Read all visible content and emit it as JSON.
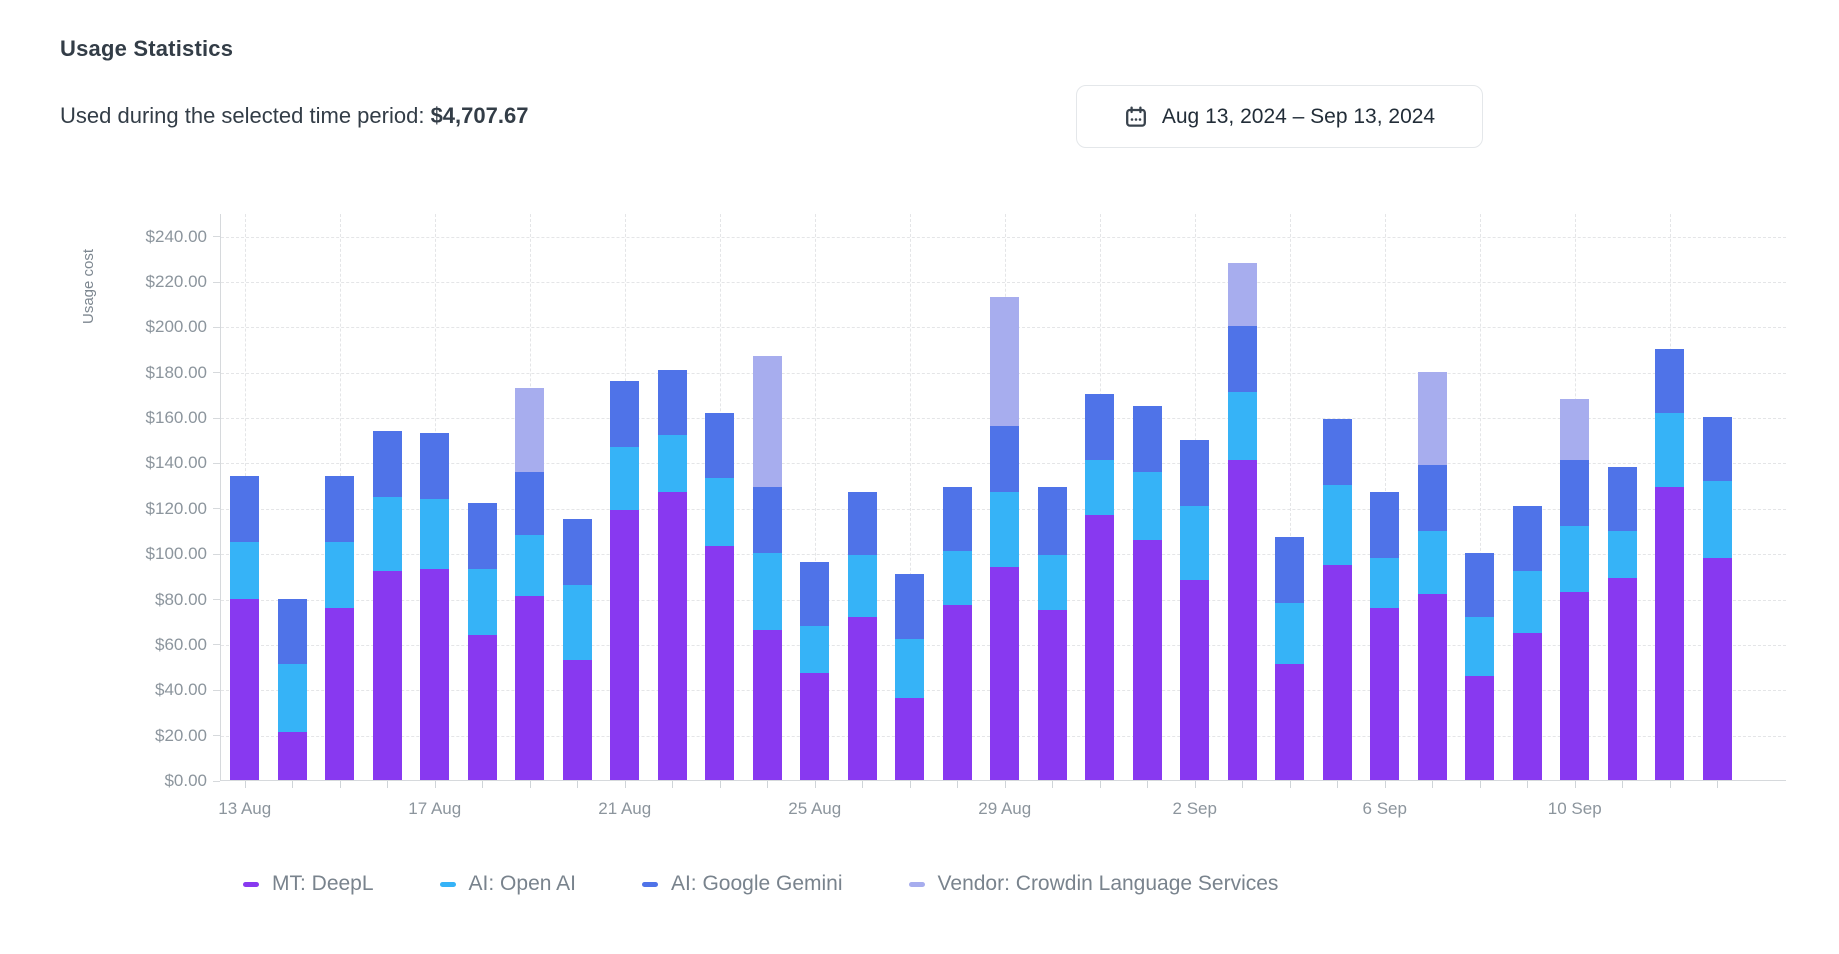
{
  "page": {
    "title": "Usage Statistics"
  },
  "summary": {
    "label": "Used during the selected time period:",
    "value": "$4,707.67"
  },
  "date_picker": {
    "range": "Aug 13, 2024 – Sep 13, 2024",
    "icon": "calendar-icon"
  },
  "colors": {
    "deepl": "#8839f0",
    "openai": "#36b3f7",
    "gemini": "#4f73e8",
    "crowdin": "#a7adee",
    "grid": "#e4e5e7",
    "axis": "#d6d9dc",
    "tick_text": "#8c959d",
    "legend_text": "#79838d"
  },
  "chart_data": {
    "type": "bar",
    "stacked": true,
    "title": "Usage Statistics",
    "xlabel": "",
    "ylabel": "Usage cost",
    "ylim": [
      0,
      250
    ],
    "grid": true,
    "legend_position": "bottom",
    "y_ticks": [
      0,
      20,
      40,
      60,
      80,
      100,
      120,
      140,
      160,
      180,
      200,
      220,
      240
    ],
    "y_tick_labels": [
      "$0.00",
      "$20.00",
      "$40.00",
      "$60.00",
      "$80.00",
      "$100.00",
      "$120.00",
      "$140.00",
      "$160.00",
      "$180.00",
      "$200.00",
      "$220.00",
      "$240.00"
    ],
    "x_tick_every": 4,
    "x_ticks_shown": [
      "13 Aug",
      "17 Aug",
      "21 Aug",
      "25 Aug",
      "29 Aug",
      "2 Sep",
      "6 Sep",
      "10 Sep"
    ],
    "categories": [
      "13 Aug",
      "14 Aug",
      "15 Aug",
      "16 Aug",
      "17 Aug",
      "18 Aug",
      "19 Aug",
      "20 Aug",
      "21 Aug",
      "22 Aug",
      "23 Aug",
      "24 Aug",
      "25 Aug",
      "26 Aug",
      "27 Aug",
      "28 Aug",
      "29 Aug",
      "30 Aug",
      "31 Aug",
      "1 Sep",
      "2 Sep",
      "3 Sep",
      "4 Sep",
      "5 Sep",
      "6 Sep",
      "7 Sep",
      "8 Sep",
      "9 Sep",
      "10 Sep",
      "11 Sep",
      "12 Sep",
      "13 Sep"
    ],
    "series": [
      {
        "name": "MT: DeepL",
        "color": "#8839f0",
        "values": [
          80,
          21,
          76,
          92,
          93,
          64,
          81,
          53,
          119,
          127,
          103,
          66,
          47,
          72,
          36,
          77,
          94,
          75,
          117,
          106,
          88,
          141,
          51,
          95,
          76,
          82,
          46,
          65,
          83,
          89,
          129,
          98
        ]
      },
      {
        "name": "AI: Open AI",
        "color": "#36b3f7",
        "values": [
          25,
          30,
          29,
          33,
          31,
          29,
          27,
          33,
          28,
          25,
          30,
          34,
          21,
          27,
          26,
          24,
          33,
          24,
          24,
          30,
          33,
          30,
          27,
          35,
          22,
          28,
          26,
          27,
          29,
          21,
          33,
          34
        ]
      },
      {
        "name": "AI: Google Gemini",
        "color": "#4f73e8",
        "values": [
          29,
          29,
          29,
          29,
          29,
          29,
          28,
          29,
          29,
          29,
          29,
          29,
          28,
          28,
          29,
          28,
          29,
          30,
          29,
          29,
          29,
          29,
          29,
          29,
          29,
          29,
          28,
          29,
          29,
          28,
          28,
          28
        ]
      },
      {
        "name": "Vendor: Crowdin Language Services",
        "color": "#a7adee",
        "values": [
          0,
          0,
          0,
          0,
          0,
          0,
          37,
          0,
          0,
          0,
          0,
          58,
          0,
          0,
          0,
          0,
          57,
          0,
          0,
          0,
          0,
          28,
          0,
          0,
          0,
          41,
          0,
          0,
          27,
          0,
          0,
          0
        ]
      }
    ]
  }
}
